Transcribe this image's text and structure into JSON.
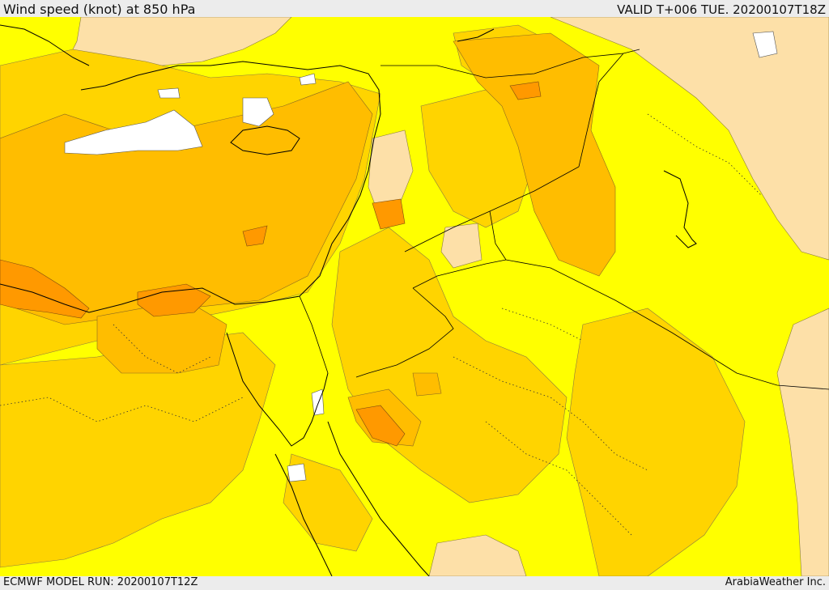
{
  "header": {
    "title": "Wind speed (knot) at 850 hPa",
    "valid": "VALID T+006 TUE. 20200107T18Z"
  },
  "footer": {
    "model_run": "ECMWF MODEL RUN: 20200107T12Z",
    "credit": "ArabiaWeather Inc."
  },
  "legend_colors": {
    "calm": "#ffffff",
    "very_light": "#fde0a8",
    "light": "#ffff00",
    "moderate": "#ffd400",
    "fresh": "#ffbd00",
    "strong": "#ff9900"
  }
}
